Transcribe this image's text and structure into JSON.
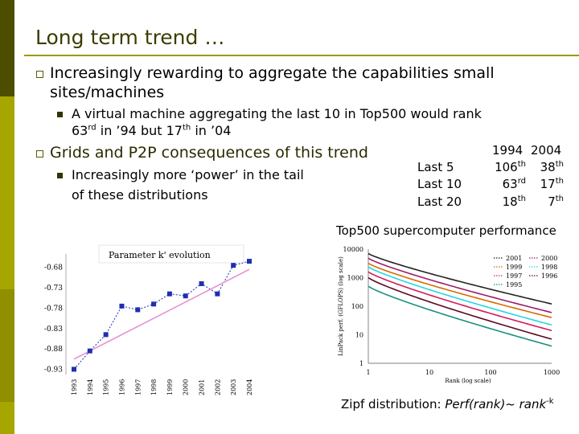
{
  "slide": {
    "title": "Long term trend …",
    "bullets": [
      {
        "text_line1": "Increasingly rewarding to aggregate the capabilities small",
        "text_line2": "sites/machines"
      },
      {
        "sub_line1": "A virtual machine aggregating the last 10 in Top500 would rank",
        "sub_line2_a": "63",
        "sub_line2_sup1": "rd",
        "sub_line2_b": " in ’94 but 17",
        "sub_line2_sup2": "th",
        "sub_line2_c": " in ’04"
      },
      {
        "text": "Grids and P2P consequences of this trend"
      },
      {
        "sub_line1": "Increasingly more ‘power’ in the tail",
        "sub_line2": "of these distributions"
      }
    ]
  },
  "rank_table": {
    "headers": [
      "1994",
      "2004"
    ],
    "rows": [
      {
        "label": "Last 5",
        "v1": "106",
        "s1": "th",
        "v2": "38",
        "s2": "th"
      },
      {
        "label": "Last 10",
        "v1": "63",
        "s1": "rd",
        "v2": "17",
        "s2": "th"
      },
      {
        "label": "Last 20",
        "v1": "18",
        "s1": "th",
        "v2": "7",
        "s2": "th"
      }
    ]
  },
  "captions": {
    "top500": "Top500 supercomputer performance",
    "zipf_a": "Zipf distribution: ",
    "zipf_b": "Perf(rank)~ rank",
    "zipf_sup": "-k"
  },
  "chart_data": [
    {
      "type": "scatter",
      "title": "Parameter k' evolution",
      "categories": [
        "1993",
        "1994",
        "1995",
        "1996",
        "1997",
        "1998",
        "1999",
        "2000",
        "2001",
        "2002",
        "2003",
        "2004"
      ],
      "values": [
        -0.93,
        -0.885,
        -0.845,
        -0.775,
        -0.784,
        -0.77,
        -0.745,
        -0.75,
        -0.72,
        -0.745,
        -0.675,
        -0.665
      ],
      "yticks": [
        "-0.68",
        "-0.73",
        "-0.78",
        "-0.83",
        "-0.88",
        "-0.93"
      ],
      "ylim": [
        -0.935,
        -0.655
      ],
      "trend": {
        "start": -0.905,
        "end": -0.685,
        "color": "#e58fcf"
      },
      "point_color": "#1f2fb0"
    },
    {
      "type": "line",
      "title": "",
      "xlabel": "Rank (log scale)",
      "ylabel": "LinPack perf. (GFLOPS) (log scale)",
      "xscale": "log",
      "yscale": "log",
      "xticks": [
        "1",
        "10",
        "100",
        "1000"
      ],
      "yticks": [
        "1",
        "10",
        "100",
        "1000",
        "10000"
      ],
      "xlim": [
        1,
        1000
      ],
      "ylim": [
        1,
        10000
      ],
      "legend": [
        "2001",
        "2000",
        "1999",
        "1998",
        "1997",
        "1996",
        "1995"
      ],
      "series": [
        {
          "name": "2001",
          "color": "#222222",
          "start": 7000,
          "end": 120
        },
        {
          "name": "2000",
          "color": "#9b1d6e",
          "start": 4800,
          "end": 60
        },
        {
          "name": "1999",
          "color": "#d96a00",
          "start": 3200,
          "end": 40
        },
        {
          "name": "1998",
          "color": "#27d6e0",
          "start": 2400,
          "end": 22
        },
        {
          "name": "1997",
          "color": "#d41c5a",
          "start": 1600,
          "end": 14
        },
        {
          "name": "1996",
          "color": "#5a0820",
          "start": 1000,
          "end": 7
        },
        {
          "name": "1995",
          "color": "#1a9080",
          "start": 500,
          "end": 4
        }
      ]
    }
  ]
}
